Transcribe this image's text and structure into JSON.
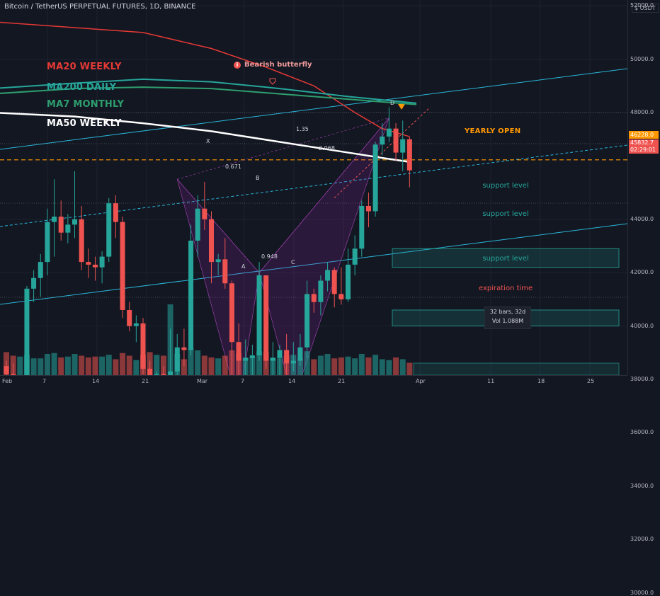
{
  "header": {
    "title": "Bitcoin / TetherUS PERPETUAL FUTURES, 1D, BINANCE",
    "price_unit": "$ USDT"
  },
  "legend": {
    "ma20w": "MA20 WEEKLY",
    "ma200d": "MA200 DAILY",
    "ma7m": "MA7 MONTHLY",
    "ma50w": "MA50 WEEKLY"
  },
  "pattern": {
    "title": "Bearish butterfly",
    "points": {
      "X": "X",
      "A": "A",
      "B": "B",
      "C": "C",
      "D": "D"
    },
    "ratios": {
      "xb": "0.671",
      "ac": "0.948",
      "bd": "2.068",
      "xd": "1.35"
    }
  },
  "annotations": {
    "yearly_open": "YEARLY OPEN",
    "support_1": "support level",
    "support_2": "support level",
    "support_3": "support level",
    "expiration": "expiration time",
    "range_bars": "32 bars, 32d",
    "range_vol": "Vol 1.088M"
  },
  "price_labels": {
    "yearly_open_price": "46228.0",
    "last_price": "45832.7",
    "countdown": "02:29:01"
  },
  "colors": {
    "up": "#26a69a",
    "down": "#ef5350",
    "ma20w": "#e53935",
    "ma200d": "#26a69a",
    "ma7m": "#2e9e6e",
    "ma50w": "#ffffff",
    "channel": "#29b6d8",
    "yearly_open": "#ff9800"
  },
  "axes": {
    "y_ticks": [
      "54000.0",
      "52000.0",
      "50000.0",
      "48000.0",
      "44000.0",
      "42000.0",
      "40000.0",
      "38000.0",
      "36000.0",
      "34000.0",
      "32000.0",
      "30000.0"
    ],
    "x_ticks": [
      "Feb",
      "7",
      "14",
      "21",
      "Mar",
      "7",
      "14",
      "21",
      "Apr",
      "11",
      "18",
      "25"
    ]
  },
  "chart_data": {
    "type": "candlestick",
    "symbol": "BTCUSDT PERP",
    "interval": "1D",
    "ylim": [
      29000,
      56000
    ],
    "start_date": "2022-01-31",
    "ohlc": [
      [
        38500,
        38700,
        37900,
        38200
      ],
      [
        38200,
        38600,
        36500,
        36900
      ],
      [
        36900,
        37400,
        36300,
        37100
      ],
      [
        37100,
        41500,
        36700,
        41400
      ],
      [
        41400,
        42100,
        40900,
        41800
      ],
      [
        41800,
        42700,
        41100,
        42400
      ],
      [
        42400,
        44400,
        41900,
        43900
      ],
      [
        43900,
        45500,
        42600,
        44100
      ],
      [
        44100,
        44700,
        43200,
        43500
      ],
      [
        43500,
        44200,
        43100,
        43800
      ],
      [
        43800,
        45800,
        43300,
        44000
      ],
      [
        44000,
        44500,
        42100,
        42400
      ],
      [
        42400,
        42900,
        41800,
        42300
      ],
      [
        42300,
        42600,
        41700,
        42200
      ],
      [
        42200,
        42800,
        41600,
        42600
      ],
      [
        42600,
        44800,
        42400,
        44600
      ],
      [
        44600,
        44900,
        43300,
        43900
      ],
      [
        43900,
        44100,
        40300,
        40600
      ],
      [
        40600,
        40900,
        39800,
        40000
      ],
      [
        40000,
        40400,
        39400,
        40100
      ],
      [
        40100,
        40300,
        38200,
        38400
      ],
      [
        38400,
        38700,
        36900,
        37100
      ],
      [
        37100,
        38300,
        36800,
        38200
      ],
      [
        38200,
        38500,
        37000,
        37200
      ],
      [
        37200,
        39900,
        34300,
        38300
      ],
      [
        38300,
        39700,
        38100,
        39200
      ],
      [
        39200,
        39900,
        38500,
        39100
      ],
      [
        39100,
        43800,
        38900,
        43200
      ],
      [
        43200,
        44900,
        42600,
        44400
      ],
      [
        44400,
        45400,
        43600,
        44000
      ],
      [
        44000,
        44300,
        41600,
        42400
      ],
      [
        42400,
        42700,
        41900,
        42500
      ],
      [
        42500,
        43300,
        41400,
        41600
      ],
      [
        41600,
        41700,
        37900,
        39400
      ],
      [
        39400,
        40100,
        37700,
        38700
      ],
      [
        38700,
        39500,
        37200,
        38800
      ],
      [
        38800,
        39300,
        37800,
        38900
      ],
      [
        38900,
        42400,
        38700,
        41900
      ],
      [
        41900,
        41900,
        38400,
        38700
      ],
      [
        38700,
        39400,
        38000,
        38800
      ],
      [
        38800,
        39300,
        38100,
        39100
      ],
      [
        39100,
        39700,
        37600,
        38600
      ],
      [
        38600,
        39400,
        38300,
        38700
      ],
      [
        38700,
        39700,
        38500,
        39200
      ],
      [
        39200,
        41700,
        38800,
        41200
      ],
      [
        41200,
        41400,
        40500,
        40900
      ],
      [
        40900,
        41900,
        40400,
        41700
      ],
      [
        41700,
        42400,
        41300,
        42100
      ],
      [
        42100,
        42200,
        40700,
        41200
      ],
      [
        41200,
        42200,
        40800,
        41000
      ],
      [
        41000,
        42900,
        40900,
        42300
      ],
      [
        42300,
        43400,
        41900,
        42900
      ],
      [
        42900,
        44700,
        42600,
        44500
      ],
      [
        44500,
        45000,
        43700,
        44300
      ],
      [
        44300,
        46900,
        44100,
        46800
      ],
      [
        46800,
        47600,
        46400,
        47100
      ],
      [
        47100,
        48200,
        46900,
        47400
      ],
      [
        47400,
        47600,
        46200,
        46500
      ],
      [
        46500,
        47700,
        45800,
        47000
      ],
      [
        47000,
        47100,
        45200,
        45833
      ]
    ],
    "volume": [
      26,
      22,
      21,
      23,
      19,
      19,
      24,
      25,
      20,
      21,
      24,
      22,
      20,
      21,
      21,
      23,
      18,
      25,
      22,
      17,
      23,
      26,
      23,
      22,
      80,
      24,
      18,
      30,
      28,
      22,
      20,
      19,
      22,
      28,
      25,
      20,
      21,
      27,
      26,
      20,
      19,
      22,
      23,
      19,
      27,
      18,
      22,
      24,
      19,
      20,
      21,
      19,
      24,
      20,
      23,
      18,
      17,
      20,
      18,
      14
    ],
    "moving_averages": [
      {
        "name": "MA20 WEEKLY",
        "points": [
          [
            -2,
            51400
          ],
          [
            20,
            51000
          ],
          [
            30,
            50400
          ],
          [
            38,
            49700
          ],
          [
            45,
            49000
          ],
          [
            51,
            48000
          ],
          [
            55,
            47400
          ],
          [
            59,
            47100
          ]
        ]
      },
      {
        "name": "MA200 DAILY",
        "points": [
          [
            -2,
            48900
          ],
          [
            10,
            49100
          ],
          [
            20,
            49250
          ],
          [
            30,
            49150
          ],
          [
            40,
            48900
          ],
          [
            50,
            48600
          ],
          [
            60,
            48350
          ]
        ]
      },
      {
        "name": "MA7 MONTHLY",
        "points": [
          [
            -2,
            48700
          ],
          [
            10,
            48900
          ],
          [
            20,
            48950
          ],
          [
            30,
            48900
          ],
          [
            40,
            48700
          ],
          [
            50,
            48500
          ],
          [
            60,
            48300
          ]
        ]
      },
      {
        "name": "MA50 WEEKLY",
        "points": [
          [
            -2,
            48000
          ],
          [
            10,
            47850
          ],
          [
            20,
            47600
          ],
          [
            30,
            47300
          ],
          [
            40,
            46900
          ],
          [
            50,
            46500
          ],
          [
            55,
            46300
          ],
          [
            59,
            46150
          ]
        ]
      }
    ],
    "harmonic_points": [
      [
        25,
        45500
      ],
      [
        34,
        37000
      ],
      [
        37,
        42000
      ],
      [
        42,
        37200
      ],
      [
        56,
        47800
      ]
    ],
    "support_zones": [
      [
        42200,
        42900
      ],
      [
        40000,
        40600
      ],
      [
        36800,
        37500
      ]
    ],
    "expiration_zone": [
      34000,
      34500
    ],
    "yearly_open": 46228
  }
}
